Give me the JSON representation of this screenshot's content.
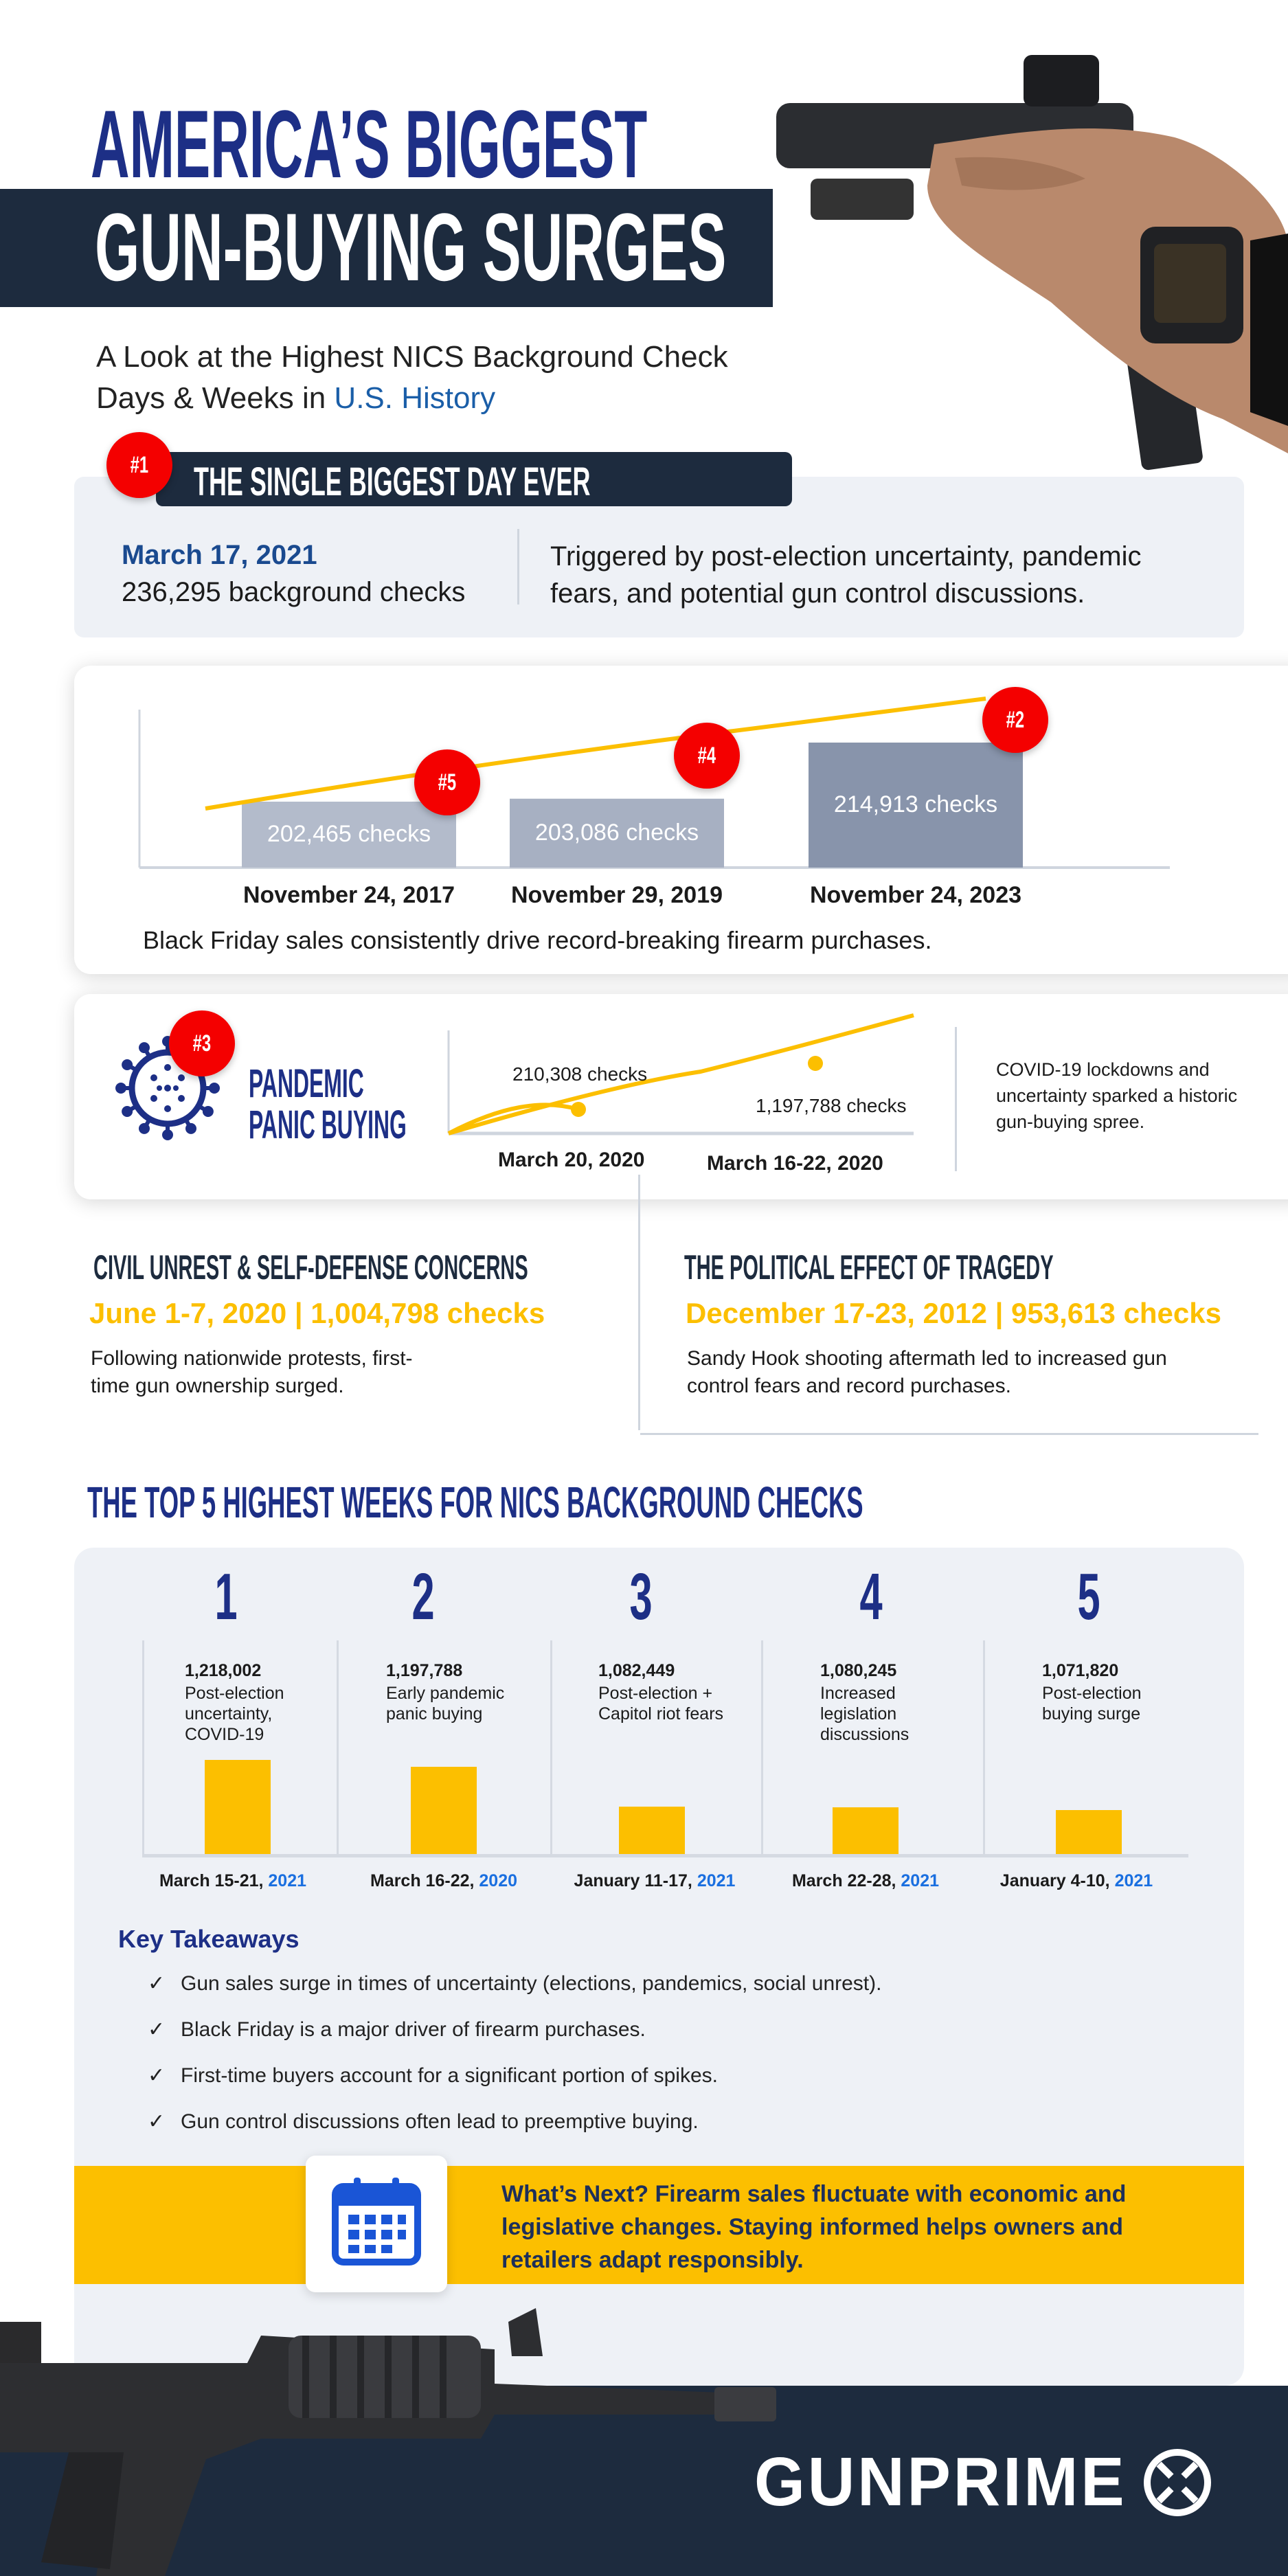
{
  "header": {
    "title_line1": "AMERICA’S BIGGEST",
    "title_line2": "GUN-BUYING SURGES",
    "subtitle_line1": "A Look at the Highest NICS Background Check",
    "subtitle_line2_prefix": "Days & Weeks in ",
    "subtitle_line2_highlight": "U.S. History"
  },
  "biggest_day": {
    "rank": "#1",
    "heading": "THE SINGLE BIGGEST DAY EVER",
    "date": "March 17, 2021",
    "checks": "236,295 background checks",
    "description_line1": "Triggered by post-election uncertainty, pandemic",
    "description_line2": "fears, and potential gun control discussions."
  },
  "black_friday": {
    "bars": [
      {
        "rank": "#5",
        "value_label": "202,465  checks",
        "date": "November 24, 2017",
        "value": 202465,
        "color": "#b3bbcb"
      },
      {
        "rank": "#4",
        "value_label": "203,086 checks",
        "date": "November 29, 2019",
        "value": 203086,
        "color": "#a7b0c2"
      },
      {
        "rank": "#2",
        "value_label": "214,913 checks",
        "date": "November 24, 2023",
        "value": 214913,
        "color": "#8894ab"
      }
    ],
    "caption": "Black Friday sales consistently drive record-breaking firearm purchases."
  },
  "pandemic": {
    "rank": "#3",
    "title_line1": "PANDEMIC",
    "title_line2": "PANIC BUYING",
    "point1_label": "210,308 checks",
    "point1_date": "March 20, 2020",
    "point2_label": "1,197,788 checks",
    "point2_date": "March 16-22, 2020",
    "description_line1": "COVID-19 lockdowns and",
    "description_line2": "uncertainty sparked a historic",
    "description_line3": "gun-buying spree."
  },
  "civil_unrest": {
    "heading": "CIVIL UNREST & SELF-DEFENSE CONCERNS",
    "stat": "June 1-7, 2020 | 1,004,798 checks",
    "description_line1": "Following nationwide protests, first-",
    "description_line2": "time gun ownership surged."
  },
  "tragedy": {
    "heading": "THE POLITICAL EFFECT OF TRAGEDY",
    "stat": "December 17-23, 2012 | 953,613 checks",
    "description_line1": "Sandy Hook shooting aftermath led to increased gun",
    "description_line2": "control fears and record purchases."
  },
  "top5": {
    "heading": "THE TOP 5 HIGHEST WEEKS FOR NICS BACKGROUND CHECKS",
    "weeks": [
      {
        "rank": "1",
        "value": "1,218,002",
        "count": 1218002,
        "desc": "Post-election uncertainty, COVID-19",
        "date": "March 15-21, ",
        "year": "2021"
      },
      {
        "rank": "2",
        "value": "1,197,788",
        "count": 1197788,
        "desc": "Early pandemic panic buying",
        "date": "March 16-22, ",
        "year": "2020"
      },
      {
        "rank": "3",
        "value": "1,082,449",
        "count": 1082449,
        "desc": "Post-election + Capitol riot fears",
        "date": "January 11-17, ",
        "year": "2021"
      },
      {
        "rank": "4",
        "value": "1,080,245",
        "count": 1080245,
        "desc": "Increased legislation discussions",
        "date": "March 22-28, ",
        "year": "2021"
      },
      {
        "rank": "5",
        "value": "1,071,820",
        "count": 1071820,
        "desc": "Post-election buying surge",
        "date": "January 4-10, ",
        "year": "2021"
      }
    ]
  },
  "takeaways": {
    "heading": "Key Takeaways",
    "check_icon": "✓",
    "items": [
      "Gun sales surge in times of uncertainty (elections, pandemics, social unrest).",
      "Black Friday is a major driver of firearm purchases.",
      "First-time buyers account for a significant portion of spikes.",
      "Gun control discussions often lead to preemptive buying."
    ]
  },
  "whats_next": {
    "line1": "What’s Next? Firearm sales fluctuate with economic and",
    "line2": "legislative changes. Staying informed helps owners and",
    "line3": "retailers adapt responsibly."
  },
  "footer": {
    "brand": "GUNPRIME"
  },
  "colors": {
    "navy": "#1d2f86",
    "dark": "#1d2b3e",
    "yellow": "#fcbf00",
    "red": "#f40000",
    "blue": "#1a6fe0",
    "panel": "#eef1f6"
  }
}
